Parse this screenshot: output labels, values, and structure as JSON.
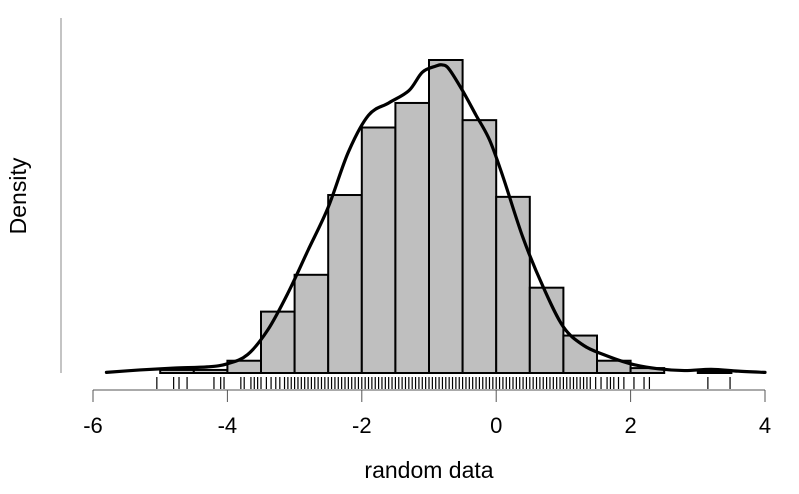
{
  "chart_data": {
    "type": "histogram",
    "xlabel": "random data",
    "ylabel": "Density",
    "xlim": [
      -6,
      4
    ],
    "x_ticks": [
      -6,
      -4,
      -2,
      0,
      2,
      4
    ],
    "x_tick_labels": [
      "-6",
      "-4",
      "-2",
      "0",
      "2",
      "4"
    ],
    "y_axis_ticks_shown": false,
    "grid": false,
    "colors": {
      "bar_fill": "#bfbfbf",
      "bar_stroke": "#000000",
      "density_line": "#000000",
      "axis": "#888888"
    },
    "bins": [
      {
        "start": -5.0,
        "end": -4.5,
        "density": 0.005
      },
      {
        "start": -4.5,
        "end": -4.0,
        "density": 0.005
      },
      {
        "start": -4.0,
        "end": -3.5,
        "density": 0.02
      },
      {
        "start": -3.5,
        "end": -3.0,
        "density": 0.1
      },
      {
        "start": -3.0,
        "end": -2.5,
        "density": 0.16
      },
      {
        "start": -2.5,
        "end": -2.0,
        "density": 0.29
      },
      {
        "start": -2.0,
        "end": -1.5,
        "density": 0.4
      },
      {
        "start": -1.5,
        "end": -1.0,
        "density": 0.44
      },
      {
        "start": -1.0,
        "end": -0.5,
        "density": 0.51
      },
      {
        "start": -0.5,
        "end": 0.0,
        "density": 0.412
      },
      {
        "start": 0.0,
        "end": 0.5,
        "density": 0.287
      },
      {
        "start": 0.5,
        "end": 1.0,
        "density": 0.139
      },
      {
        "start": 1.0,
        "end": 1.5,
        "density": 0.061
      },
      {
        "start": 1.5,
        "end": 2.0,
        "density": 0.02
      },
      {
        "start": 2.0,
        "end": 2.5,
        "density": 0.008
      },
      {
        "start": 3.0,
        "end": 3.5,
        "density": 0.003
      }
    ],
    "density_curve": {
      "x": [
        -5.8,
        -5.3,
        -4.8,
        -4.3,
        -4.0,
        -3.7,
        -3.4,
        -3.1,
        -2.8,
        -2.5,
        -2.2,
        -1.9,
        -1.6,
        -1.3,
        -1.1,
        -0.9,
        -0.8,
        -0.7,
        -0.5,
        -0.3,
        -0.1,
        0.1,
        0.4,
        0.7,
        1.0,
        1.3,
        1.6,
        2.0,
        2.4,
        2.8,
        3.2,
        3.6,
        4.0
      ],
      "y": [
        0.001,
        0.005,
        0.008,
        0.01,
        0.015,
        0.03,
        0.07,
        0.13,
        0.2,
        0.27,
        0.36,
        0.42,
        0.44,
        0.46,
        0.49,
        0.5,
        0.502,
        0.495,
        0.46,
        0.42,
        0.38,
        0.32,
        0.22,
        0.14,
        0.075,
        0.045,
        0.03,
        0.015,
        0.007,
        0.004,
        0.006,
        0.003,
        0.001
      ]
    },
    "rug": [
      -5.05,
      -4.8,
      -4.72,
      -4.6,
      -4.2,
      -4.1,
      -4.05,
      -3.8,
      -3.75,
      -3.65,
      -3.6,
      -3.55,
      -3.5,
      -3.42,
      -3.35,
      -3.28,
      -3.22,
      -3.15,
      -3.1,
      -3.05,
      -3.0,
      -2.95,
      -2.9,
      -2.85,
      -2.8,
      -2.75,
      -2.7,
      -2.65,
      -2.6,
      -2.55,
      -2.5,
      -2.45,
      -2.4,
      -2.35,
      -2.3,
      -2.25,
      -2.2,
      -2.15,
      -2.1,
      -2.05,
      -2.0,
      -1.95,
      -1.9,
      -1.85,
      -1.8,
      -1.75,
      -1.7,
      -1.65,
      -1.6,
      -1.55,
      -1.5,
      -1.45,
      -1.4,
      -1.35,
      -1.3,
      -1.25,
      -1.2,
      -1.15,
      -1.1,
      -1.05,
      -1.0,
      -0.95,
      -0.9,
      -0.85,
      -0.8,
      -0.75,
      -0.7,
      -0.65,
      -0.6,
      -0.55,
      -0.5,
      -0.45,
      -0.4,
      -0.35,
      -0.3,
      -0.25,
      -0.2,
      -0.15,
      -0.1,
      -0.05,
      0.0,
      0.05,
      0.1,
      0.15,
      0.2,
      0.25,
      0.3,
      0.35,
      0.4,
      0.45,
      0.5,
      0.55,
      0.6,
      0.65,
      0.7,
      0.75,
      0.8,
      0.85,
      0.9,
      0.95,
      1.0,
      1.05,
      1.1,
      1.15,
      1.2,
      1.25,
      1.3,
      1.35,
      1.4,
      1.48,
      1.56,
      1.65,
      1.7,
      1.75,
      1.82,
      1.9,
      2.05,
      2.2,
      2.28,
      3.15,
      3.48
    ]
  }
}
